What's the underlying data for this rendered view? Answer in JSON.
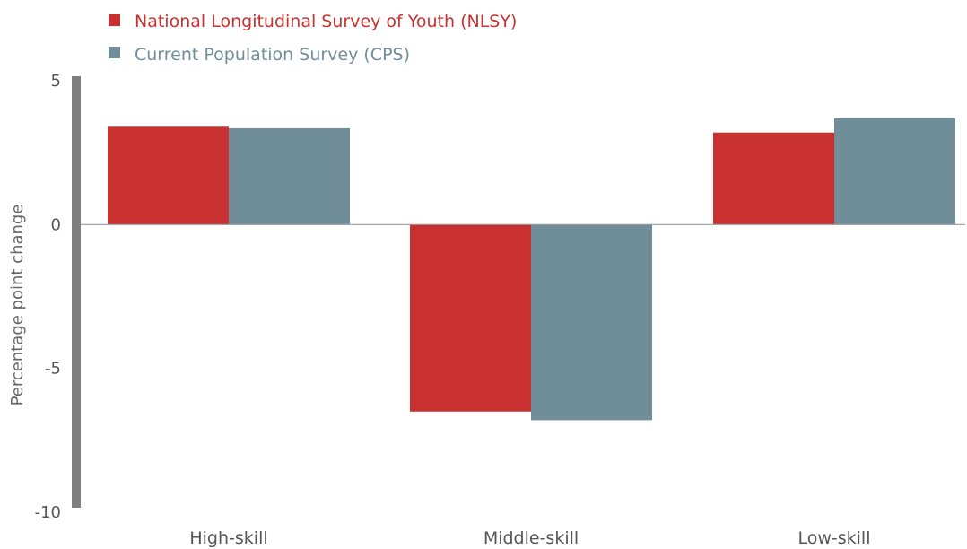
{
  "chart_data": {
    "type": "bar",
    "categories": [
      "High-skill",
      "Middle-skill",
      "Low-skill"
    ],
    "series": [
      {
        "name": "National Longitudinal Survey of Youth (NLSY)",
        "values": [
          3.4,
          -6.5,
          3.2
        ],
        "color": "#c8312f"
      },
      {
        "name": "Current Population Survey (CPS)",
        "values": [
          3.35,
          -6.8,
          3.7
        ],
        "color": "#6f8e9a"
      }
    ],
    "ylabel": "Percentage point change",
    "xlabel": "",
    "ylim": [
      -10,
      5
    ],
    "yticks": [
      5,
      0,
      -5,
      -10
    ],
    "legend_position": "top-left",
    "grid": false,
    "axis_color": "#7f7f7f"
  }
}
